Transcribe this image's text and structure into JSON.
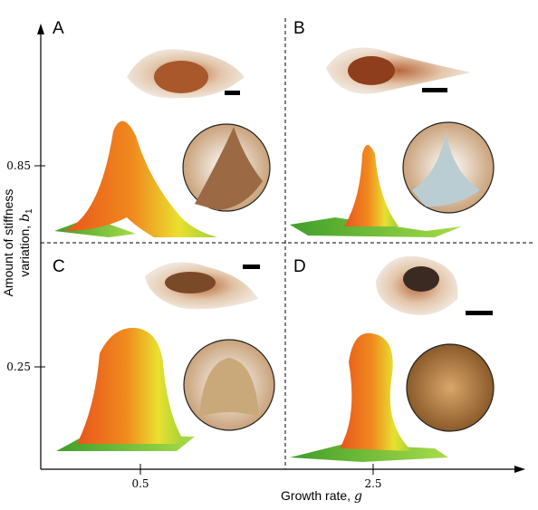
{
  "panels": [
    {
      "label": "A"
    },
    {
      "label": "B"
    },
    {
      "label": "C"
    },
    {
      "label": "D"
    }
  ],
  "axes": {
    "x_label": "Growth rate, ",
    "x_symbol": "g",
    "x_ticks": [
      "0.5",
      "2.5"
    ],
    "y_label_lines": [
      "Amount of stiffness",
      "variation, "
    ],
    "y_symbol": "b",
    "y_subscript": "1",
    "y_ticks": [
      "0.85",
      "0.25"
    ]
  }
}
